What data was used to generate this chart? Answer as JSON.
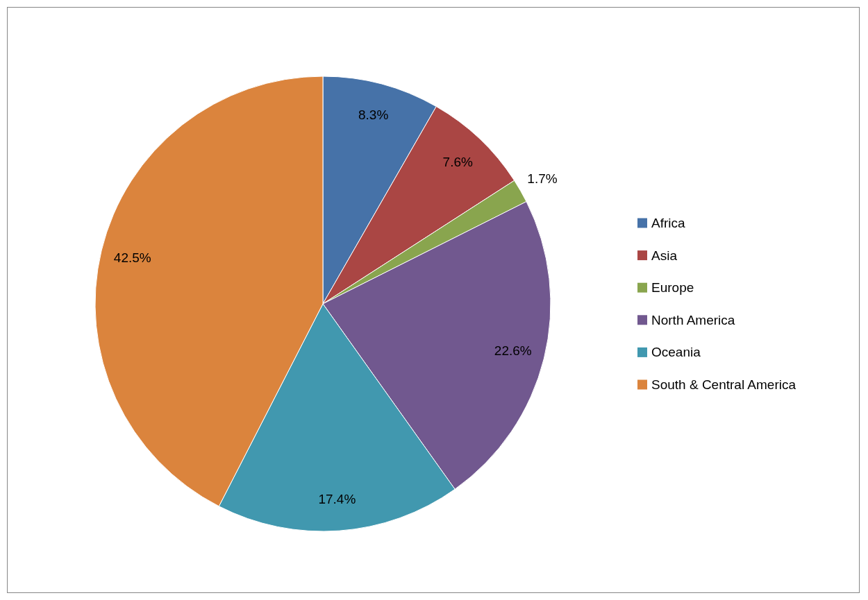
{
  "chart_data": {
    "type": "pie",
    "categories": [
      "Africa",
      "Asia",
      "Europe",
      "North America",
      "Oceania",
      "South & Central America"
    ],
    "values": [
      8.3,
      7.6,
      1.7,
      22.6,
      17.4,
      42.5
    ],
    "colors": [
      "#4672a8",
      "#aa4644",
      "#89a54e",
      "#71588f",
      "#4198af",
      "#db843d"
    ],
    "value_labels": [
      "8.3%",
      "7.6%",
      "1.7%",
      "22.6%",
      "17.4%",
      "42.5%"
    ],
    "legend": "right"
  }
}
